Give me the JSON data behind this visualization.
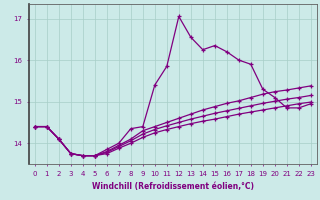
{
  "bg_color": "#cceae8",
  "line_color": "#800080",
  "grid_color": "#a8cec8",
  "xlabel": "Windchill (Refroidissement éolien,°C)",
  "yticks": [
    14,
    15,
    16,
    17
  ],
  "xlim": [
    -0.5,
    23.5
  ],
  "ylim": [
    13.5,
    17.35
  ],
  "xticks": [
    0,
    1,
    2,
    3,
    4,
    5,
    6,
    7,
    8,
    9,
    10,
    11,
    12,
    13,
    14,
    15,
    16,
    17,
    18,
    19,
    20,
    21,
    22,
    23
  ],
  "series": [
    [
      14.4,
      14.4,
      14.1,
      13.75,
      13.7,
      13.7,
      13.85,
      14.0,
      14.35,
      14.4,
      15.4,
      15.85,
      17.05,
      16.55,
      16.25,
      16.35,
      16.2,
      16.0,
      15.9,
      15.3,
      15.1,
      14.85,
      14.85,
      14.95
    ],
    [
      14.4,
      14.4,
      14.1,
      13.75,
      13.7,
      13.7,
      13.8,
      13.95,
      14.1,
      14.3,
      14.4,
      14.5,
      14.6,
      14.7,
      14.8,
      14.88,
      14.96,
      15.02,
      15.1,
      15.18,
      15.24,
      15.28,
      15.33,
      15.38
    ],
    [
      14.4,
      14.4,
      14.1,
      13.75,
      13.7,
      13.7,
      13.78,
      13.92,
      14.06,
      14.22,
      14.33,
      14.42,
      14.5,
      14.58,
      14.65,
      14.72,
      14.78,
      14.84,
      14.9,
      14.96,
      15.01,
      15.06,
      15.1,
      15.15
    ],
    [
      14.4,
      14.4,
      14.1,
      13.75,
      13.7,
      13.7,
      13.75,
      13.88,
      14.0,
      14.14,
      14.25,
      14.33,
      14.4,
      14.47,
      14.53,
      14.58,
      14.64,
      14.7,
      14.75,
      14.8,
      14.85,
      14.9,
      14.95,
      14.99
    ]
  ],
  "marker": "+",
  "markersize": 3,
  "linewidth": 0.9,
  "tick_fontsize": 5,
  "xlabel_fontsize": 5.5
}
